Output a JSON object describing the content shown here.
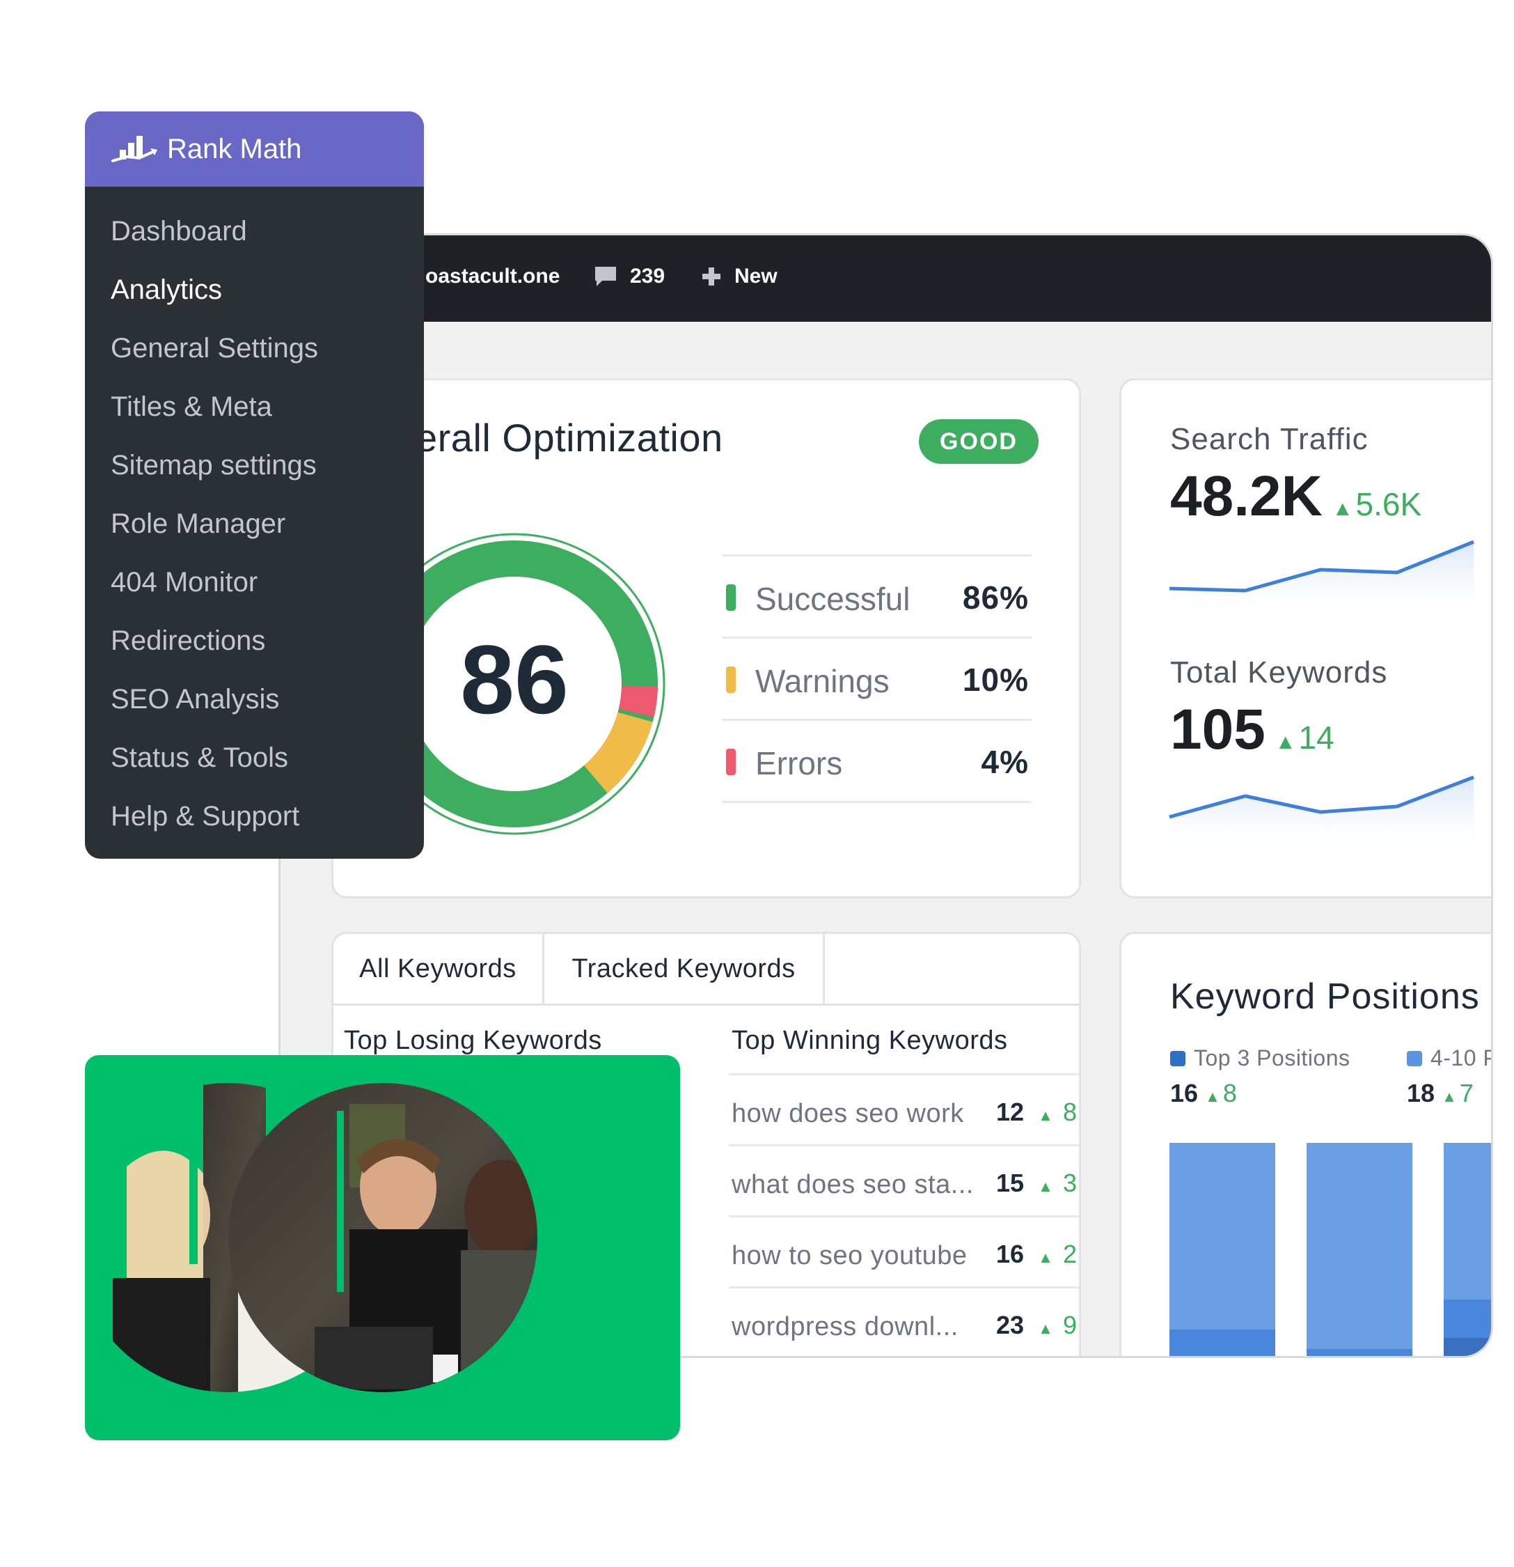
{
  "topbar": {
    "site": "oastacult.one",
    "comments": "239",
    "new_label": "New"
  },
  "sidebar": {
    "brand": "Rank Math",
    "items": [
      {
        "label": "Dashboard"
      },
      {
        "label": "Analytics"
      },
      {
        "label": "General Settings"
      },
      {
        "label": "Titles & Meta"
      },
      {
        "label": "Sitemap settings"
      },
      {
        "label": "Role Manager"
      },
      {
        "label": "404 Monitor"
      },
      {
        "label": "Redirections"
      },
      {
        "label": "SEO Analysis"
      },
      {
        "label": "Status & Tools"
      },
      {
        "label": "Help & Support"
      }
    ],
    "active_index": 1
  },
  "optimization": {
    "title": "erall Optimization",
    "badge": "GOOD",
    "score": "86",
    "stats": [
      {
        "label": "Successful",
        "value": "86%",
        "color": "#3dae5f"
      },
      {
        "label": "Warnings",
        "value": "10%",
        "color": "#f1bb47"
      },
      {
        "label": "Errors",
        "value": "4%",
        "color": "#ef5a70"
      }
    ],
    "donut_fractions": {
      "successful": 0.86,
      "warnings": 0.1,
      "errors": 0.04
    }
  },
  "traffic": {
    "search_title": "Search Traffic",
    "search_value": "48.2K",
    "search_delta": "5.6K",
    "keywords_title": "Total Keywords",
    "keywords_value": "105",
    "keywords_delta": "14",
    "line_color": "#3f7fdc"
  },
  "keywords": {
    "tabs": [
      "All Keywords",
      "Tracked Keywords"
    ],
    "losing_head": "Top Losing Keywords",
    "winning_head": "Top Winning Keywords",
    "winning": [
      {
        "name": "how does seo work",
        "pos": "12",
        "change": "8"
      },
      {
        "name": "what does seo sta...",
        "pos": "15",
        "change": "3"
      },
      {
        "name": "how to seo youtube",
        "pos": "16",
        "change": "2"
      },
      {
        "name": "wordpress downl...",
        "pos": "23",
        "change": "9"
      }
    ]
  },
  "positions": {
    "title": "Keyword Positions",
    "legend": [
      {
        "label": "Top 3 Positions",
        "value": "16",
        "delta": "8",
        "color": "#2e6fc7"
      },
      {
        "label": "4-10 P",
        "value": "18",
        "delta": "7",
        "color": "#5b95e0"
      }
    ]
  },
  "colors": {
    "brand": "#6a68c6",
    "sidebar_bg": "#2b3035",
    "topbar_bg": "#1e2227",
    "success": "#3dae5f",
    "photo_bg": "#00bf6b"
  }
}
